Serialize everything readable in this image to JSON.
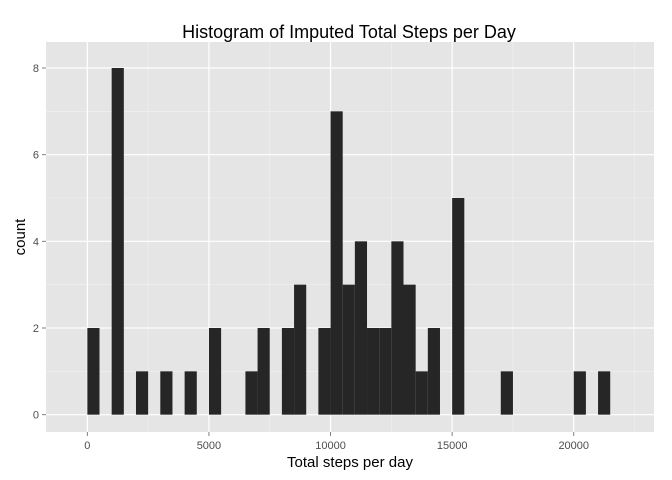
{
  "chart_data": {
    "type": "bar",
    "title": "Histogram of Imputed Total Steps per Day",
    "xlabel": "Total steps per day",
    "ylabel": "count",
    "xlim": [
      -1700,
      23300
    ],
    "ylim": [
      -0.4,
      8.6
    ],
    "binwidth": 500,
    "x_ticks": [
      0,
      5000,
      10000,
      15000,
      20000
    ],
    "y_ticks": [
      0,
      2,
      4,
      6,
      8
    ],
    "grid": true,
    "bins": [
      {
        "x": 250,
        "count": 2
      },
      {
        "x": 1250,
        "count": 8
      },
      {
        "x": 2250,
        "count": 1
      },
      {
        "x": 3250,
        "count": 1
      },
      {
        "x": 4250,
        "count": 1
      },
      {
        "x": 5250,
        "count": 2
      },
      {
        "x": 6750,
        "count": 1
      },
      {
        "x": 7250,
        "count": 2
      },
      {
        "x": 8250,
        "count": 2
      },
      {
        "x": 8750,
        "count": 3
      },
      {
        "x": 9750,
        "count": 2
      },
      {
        "x": 10250,
        "count": 7
      },
      {
        "x": 10750,
        "count": 3
      },
      {
        "x": 11250,
        "count": 4
      },
      {
        "x": 11750,
        "count": 2
      },
      {
        "x": 12250,
        "count": 2
      },
      {
        "x": 12750,
        "count": 4
      },
      {
        "x": 13250,
        "count": 3
      },
      {
        "x": 13750,
        "count": 1
      },
      {
        "x": 14250,
        "count": 2
      },
      {
        "x": 15250,
        "count": 5
      },
      {
        "x": 17250,
        "count": 1
      },
      {
        "x": 20250,
        "count": 1
      },
      {
        "x": 21250,
        "count": 1
      }
    ],
    "colors": {
      "panel": "#e5e5e5",
      "grid_major": "#ffffff",
      "grid_minor": "#f2f2f2",
      "bar": "#262626"
    }
  }
}
